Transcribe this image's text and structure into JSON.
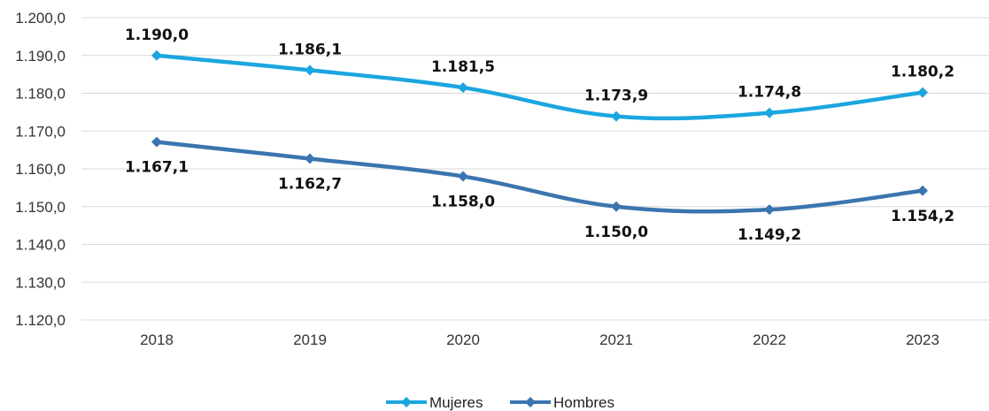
{
  "chart_data": {
    "type": "line",
    "categories": [
      "2018",
      "2019",
      "2020",
      "2021",
      "2022",
      "2023"
    ],
    "ylim": [
      1120,
      1200
    ],
    "yticks": [
      1120,
      1130,
      1140,
      1150,
      1160,
      1170,
      1180,
      1190,
      1200
    ],
    "ytick_labels": [
      "1.120,0",
      "1.130,0",
      "1.140,0",
      "1.150,0",
      "1.160,0",
      "1.170,0",
      "1.180,0",
      "1.190,0",
      "1.200,0"
    ],
    "grid": true,
    "legend": "bottom-center",
    "series": [
      {
        "name": "Mujeres",
        "color": "#1BA6DF",
        "values": [
          1190.0,
          1186.1,
          1181.5,
          1173.9,
          1174.8,
          1180.2
        ],
        "labels": [
          "1.190,0",
          "1.186,1",
          "1.181,5",
          "1.173,9",
          "1.174,8",
          "1.180,2"
        ],
        "label_position": "above"
      },
      {
        "name": "Hombres",
        "color": "#3A75AF",
        "values": [
          1167.1,
          1162.7,
          1158.0,
          1150.0,
          1149.2,
          1154.2
        ],
        "labels": [
          "1.167,1",
          "1.162,7",
          "1.158,0",
          "1.150,0",
          "1.149,2",
          "1.154,2"
        ],
        "label_position": "below"
      }
    ]
  }
}
